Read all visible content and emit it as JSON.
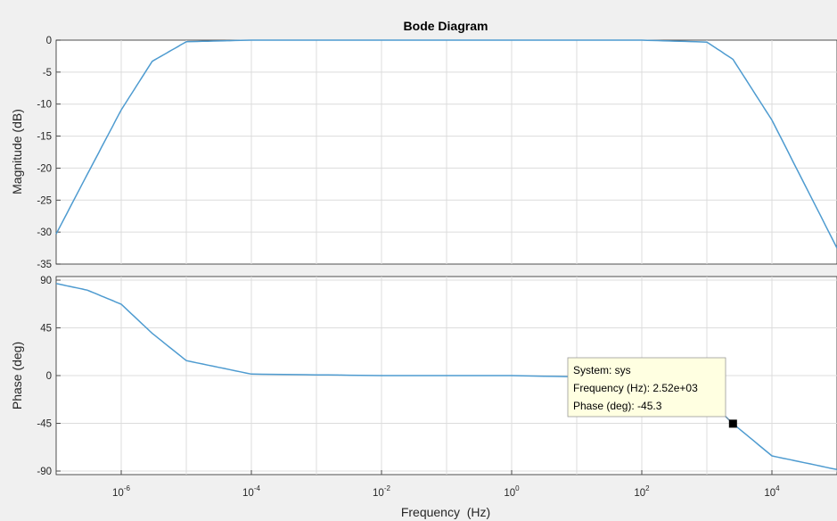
{
  "chart_data": [
    {
      "type": "line",
      "title": "Bode Diagram",
      "ylabel": "Magnitude (dB)",
      "xscale": "log",
      "xlim": [
        1e-07,
        100000
      ],
      "ylim": [
        -35,
        0
      ],
      "yticks": [
        "0",
        "-5",
        "-10",
        "-15",
        "-20",
        "-25",
        "-30",
        "-35"
      ],
      "grid": true,
      "series": [
        {
          "x": [
            1e-07,
            3e-07,
            1e-06,
            3e-06,
            1e-05,
            0.0001,
            0.01,
            1,
            100,
            1000,
            2520,
            10000,
            100000
          ],
          "values": [
            -30.3,
            -21.0,
            -10.9,
            -3.3,
            -0.25,
            0,
            0,
            0,
            0,
            -0.3,
            -3.0,
            -12.5,
            -32.5
          ]
        }
      ]
    },
    {
      "type": "line",
      "ylabel": "Phase (deg)",
      "xlabel": "Frequency  (Hz)",
      "xscale": "log",
      "xlim": [
        1e-07,
        100000
      ],
      "ylim": [
        -90,
        90
      ],
      "yticks": [
        "90",
        "45",
        "0",
        "-45",
        "-90"
      ],
      "xticks": [
        {
          "base": "10",
          "exp": "-6"
        },
        {
          "base": "10",
          "exp": "-4"
        },
        {
          "base": "10",
          "exp": "-2"
        },
        {
          "base": "10",
          "exp": "0"
        },
        {
          "base": "10",
          "exp": "2"
        },
        {
          "base": "10",
          "exp": "4"
        }
      ],
      "grid": true,
      "series": [
        {
          "x": [
            1e-07,
            3e-07,
            1e-06,
            3e-06,
            1e-05,
            0.0001,
            0.01,
            1,
            100,
            1000,
            2520,
            10000,
            100000
          ],
          "values": [
            86.8,
            80.6,
            67.3,
            39.8,
            14.1,
            1.4,
            0,
            0,
            -2.3,
            -21.6,
            -45.3,
            -75.7,
            -88.6
          ]
        }
      ]
    }
  ],
  "datatip": {
    "line1": "System: sys",
    "line2": "Frequency (Hz): 2.52e+03",
    "line3": "Phase (deg): -45.3",
    "marker_x": 2520,
    "marker_y": -45.3
  },
  "colors": {
    "line": "#4e9bd0",
    "grid": "#dcdcdc",
    "axes_bg": "#ffffff",
    "figure_bg": "#f0f0f0",
    "tip_bg": "#ffffe1"
  }
}
